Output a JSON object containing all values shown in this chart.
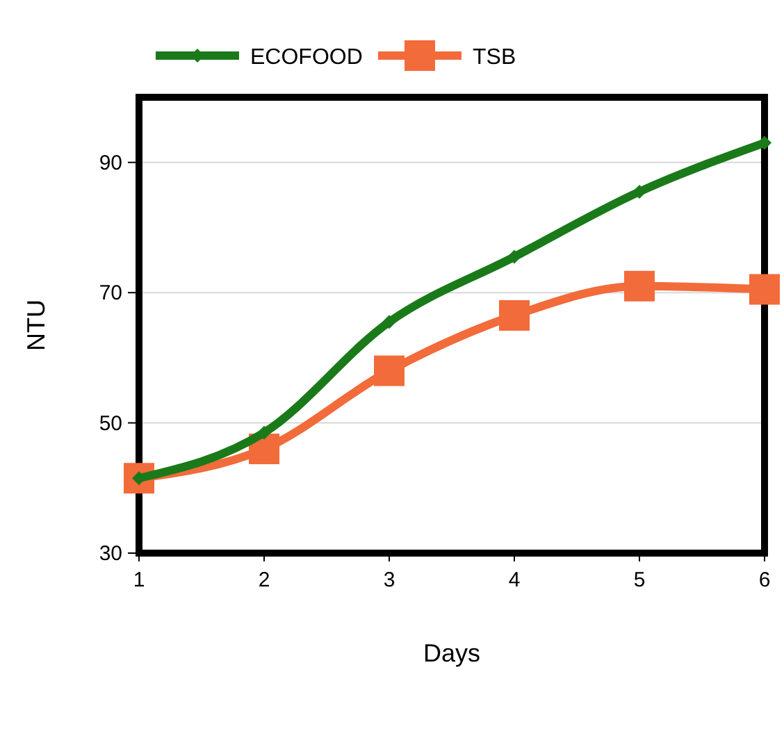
{
  "chart_data": {
    "type": "line",
    "xlabel": "Days",
    "ylabel": "NTU",
    "x": [
      1,
      2,
      3,
      4,
      5,
      6
    ],
    "xlim": [
      1,
      6
    ],
    "xticks": [
      1,
      2,
      3,
      4,
      5,
      6
    ],
    "ylim": [
      30,
      100
    ],
    "yticks": [
      30,
      50,
      70,
      90
    ],
    "grid": "y",
    "legend": "top",
    "line_style": "solid",
    "series": [
      {
        "name": "ECOFOOD",
        "color": "#1a7a1a",
        "marker": "diamond",
        "values": [
          41.5,
          48.5,
          65.5,
          75.5,
          85.5,
          93
        ]
      },
      {
        "name": "TSB",
        "color": "#f26b3a",
        "marker": "square",
        "values": [
          41.5,
          46,
          58,
          66.5,
          71,
          70.5
        ]
      }
    ]
  }
}
